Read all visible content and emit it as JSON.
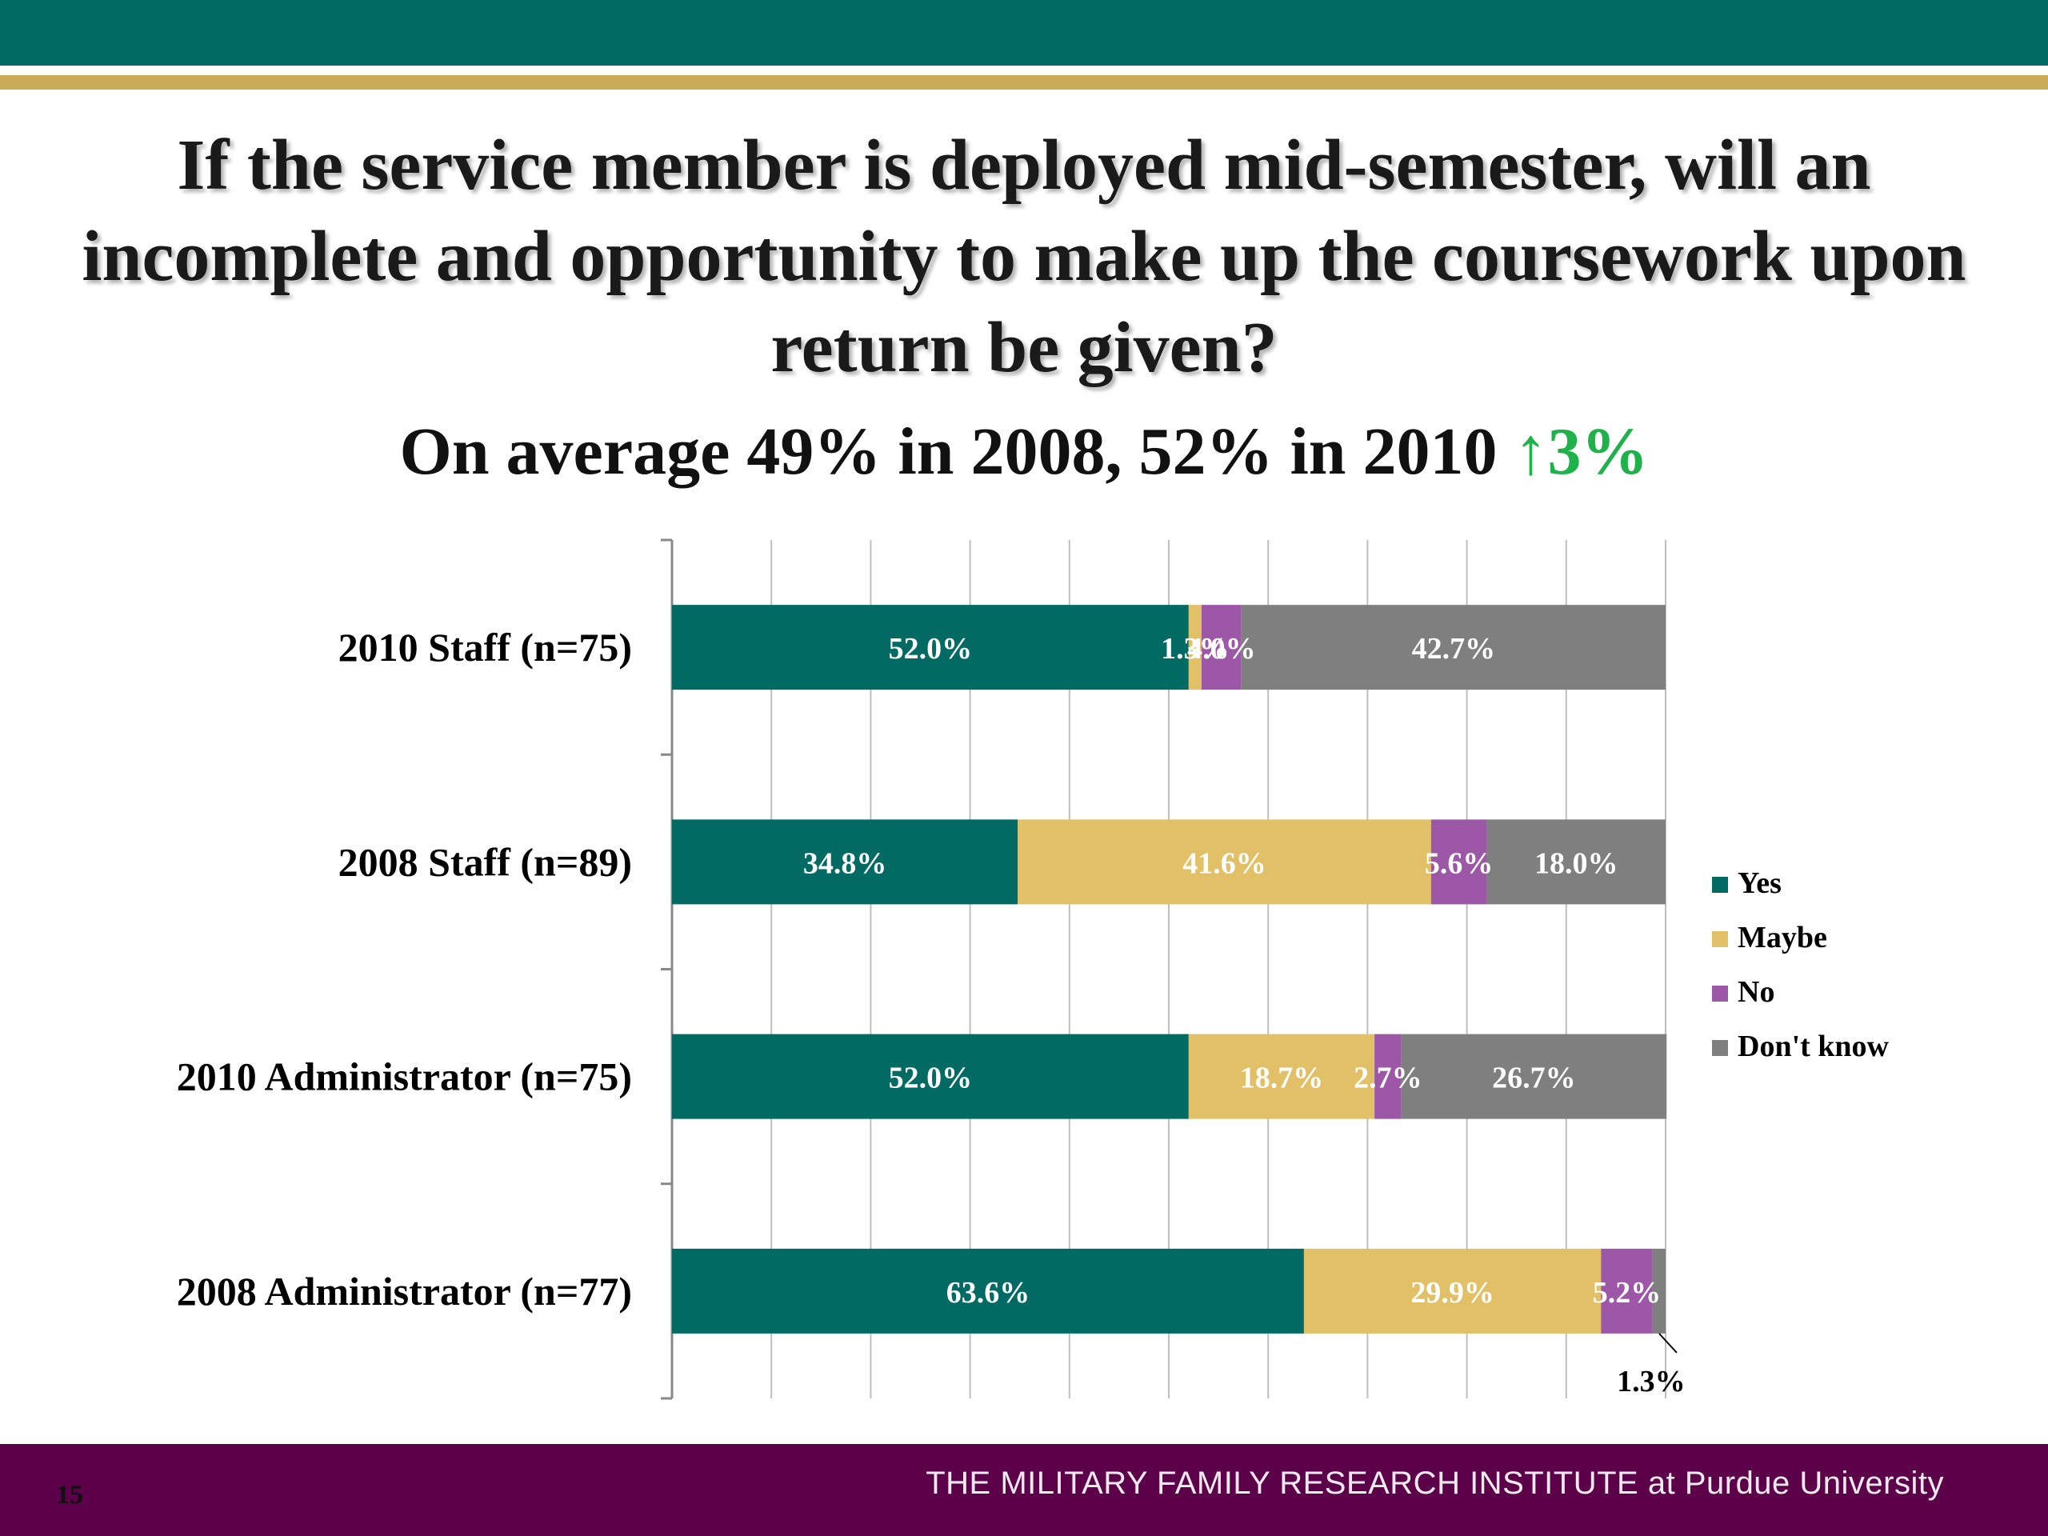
{
  "header": {
    "title": "If the service member is deployed mid-semester, will an incomplete and opportunity to make up the coursework upon return be given?",
    "subtitle_text": "On average 49% in 2008, 52% in 2010 ",
    "subtitle_arrow": "↑",
    "subtitle_delta": "3%",
    "delta_color": "#1fb14a"
  },
  "colors": {
    "top_band": "#006a63",
    "gold_rule": "#c9aa58",
    "footer": "#5b0049"
  },
  "chart_data": {
    "type": "bar",
    "orientation": "horizontal",
    "stacked": true,
    "percent_stacked": true,
    "categories": [
      "2010 Staff (n=75)",
      "2008 Staff (n=89)",
      "2010 Administrator (n=75)",
      "2008 Administrator (n=77)"
    ],
    "series": [
      {
        "name": "Yes",
        "color": "#006a63",
        "values": [
          52.0,
          34.8,
          52.0,
          63.6
        ],
        "labels": [
          "52.0%",
          "34.8%",
          "52.0%",
          "63.6%"
        ]
      },
      {
        "name": "Maybe",
        "color": "#e1c067",
        "values": [
          1.3,
          41.6,
          18.7,
          29.9
        ],
        "labels": [
          "1.3%",
          "41.6%",
          "18.7%",
          "29.9%"
        ]
      },
      {
        "name": "No",
        "color": "#9c58a6",
        "values": [
          4.0,
          5.6,
          2.7,
          5.2
        ],
        "labels": [
          "4.0%",
          "5.6%",
          "2.7%",
          "5.2%"
        ]
      },
      {
        "name": "Don't know",
        "color": "#7f7f7f",
        "values": [
          42.7,
          18.0,
          26.7,
          1.3
        ],
        "labels": [
          "42.7%",
          "18.0%",
          "26.7%",
          "1.3%"
        ]
      }
    ],
    "xlim": [
      0,
      100
    ],
    "grid": true,
    "legend_position": "right",
    "callout": {
      "category": "2008 Administrator (n=77)",
      "series": "Don't know",
      "label": "1.3%"
    }
  },
  "footer": {
    "page_number": "15",
    "institute_text": "THE MILITARY FAMILY RESEARCH INSTITUTE at Purdue University"
  }
}
